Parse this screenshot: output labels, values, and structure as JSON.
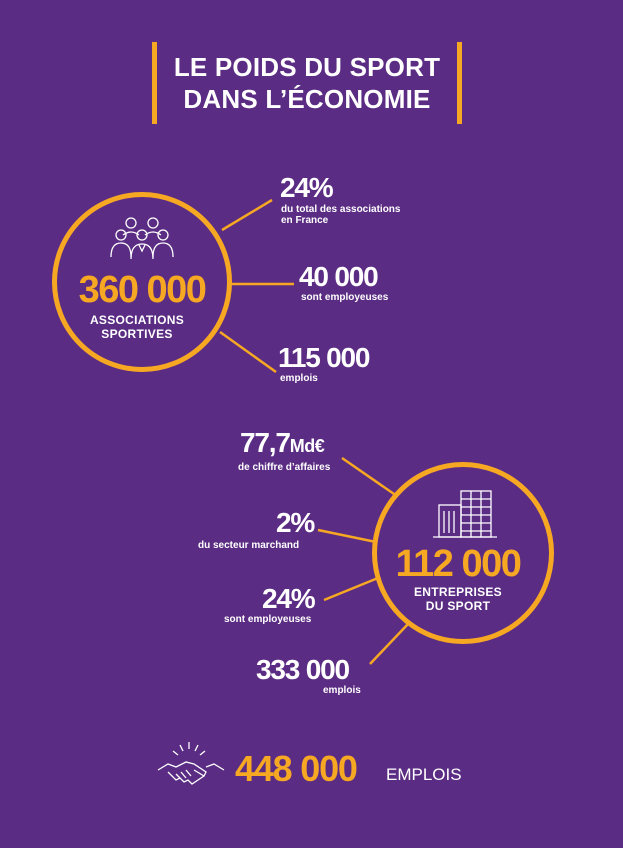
{
  "title": {
    "line1": "LE POIDS DU SPORT",
    "line2": "DANS L’ÉCONOMIE"
  },
  "associations": {
    "number": "360 000",
    "label_line1": "ASSOCIATIONS",
    "label_line2": "SPORTIVES",
    "icon": "people-group-icon",
    "stats": [
      {
        "value": "24%",
        "sub_line1": "du total des associations",
        "sub_line2": "en France"
      },
      {
        "value": "40 000",
        "sub_line1": "sont employeuses",
        "sub_line2": ""
      },
      {
        "value": "115 000",
        "sub_line1": "emplois",
        "sub_line2": ""
      }
    ]
  },
  "entreprises": {
    "number": "112 000",
    "label_line1": "ENTREPRISES",
    "label_line2": "DU SPORT",
    "icon": "buildings-icon",
    "stats": [
      {
        "value": "77,7",
        "unit": "Md€",
        "sub": "de chiffre d’affaires"
      },
      {
        "value": "2%",
        "sub": "du secteur marchand"
      },
      {
        "value": "24%",
        "sub": "sont employeuses"
      },
      {
        "value": "333 000",
        "sub": "emplois"
      }
    ]
  },
  "total": {
    "number": "448 000",
    "label": "EMPLOIS",
    "icon": "handshake-icon"
  },
  "colors": {
    "background": "#5b2c83",
    "accent": "#f7a823",
    "text": "#ffffff"
  }
}
